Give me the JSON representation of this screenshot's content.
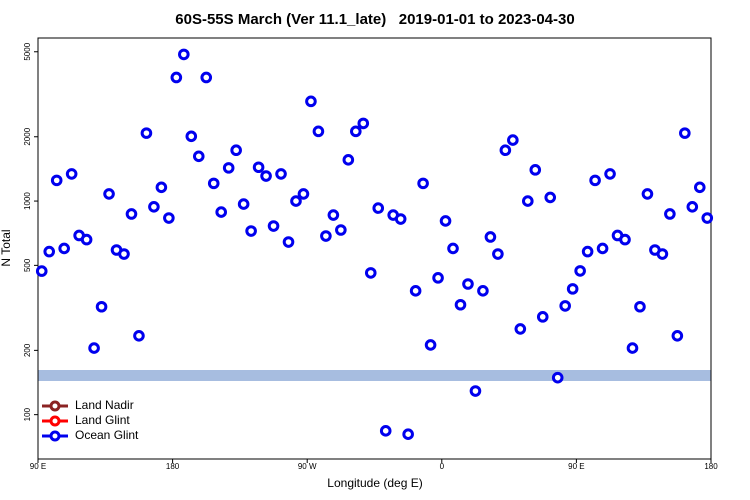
{
  "chart_data": {
    "type": "scatter",
    "title": "60S-55S March (Ver 11.1_late)   2019-01-01 to 2023-04-30",
    "x_label": "Longitude (deg E)",
    "y_label": "N Total",
    "xlim": [
      90,
      540
    ],
    "xticks": [
      {
        "value": 90,
        "label": "90 E"
      },
      180,
      {
        "value": 270,
        "label": "90 W"
      },
      {
        "value": 360,
        "label": "0"
      },
      {
        "value": 450,
        "label": "90 E"
      },
      {
        "value": 540,
        "label": "180"
      }
    ],
    "ylim": [
      62,
      5800
    ],
    "yticks": [
      100,
      200,
      500,
      1000,
      2000,
      5000
    ],
    "y_scale": "log",
    "grid": false,
    "legend": "lower left",
    "series": [
      {
        "name": "Land Nadir",
        "color": "#8b2323",
        "x": [],
        "values": []
      },
      {
        "name": "Land Glint",
        "color": "#ff0000",
        "x": [],
        "values": []
      },
      {
        "name": "Ocean Glint",
        "color": "#0000ee",
        "x": [
          92.5,
          97.5,
          102.5,
          107.5,
          112.5,
          117.5,
          122.5,
          127.5,
          132.5,
          137.5,
          142.5,
          147.5,
          152.5,
          157.5,
          162.5,
          167.5,
          172.5,
          177.5,
          182.5,
          187.5,
          192.5,
          197.5,
          202.5,
          207.5,
          212.5,
          217.5,
          222.5,
          227.5,
          232.5,
          237.5,
          242.5,
          247.5,
          252.5,
          257.5,
          262.5,
          267.5,
          272.5,
          277.5,
          282.5,
          287.5,
          292.5,
          297.5,
          302.5,
          307.5,
          312.5,
          317.5,
          322.5,
          327.5,
          332.5,
          337.5,
          342.5,
          347.5,
          352.5,
          357.5,
          362.5,
          367.5,
          372.5,
          377.5,
          382.5,
          387.5,
          392.5,
          397.5,
          402.5,
          407.5,
          412.5,
          417.5,
          422.5,
          427.5,
          432.5,
          437.5,
          442.5,
          447.5,
          452.5,
          457.5,
          462.5,
          467.5,
          472.5,
          477.5,
          482.5,
          487.5,
          492.5,
          497.5,
          502.5,
          507.5,
          512.5,
          517.5,
          522.5,
          527.5,
          532.5,
          537.5
        ],
        "values": [
          470,
          580,
          1250,
          600,
          1340,
          690,
          660,
          205,
          320,
          1080,
          590,
          565,
          870,
          234,
          2080,
          940,
          1160,
          833,
          3790,
          4860,
          2010,
          1620,
          3790,
          1210,
          888,
          1430,
          1730,
          968,
          724,
          1440,
          1310,
          764,
          1340,
          643,
          1000,
          1080,
          2930,
          2120,
          686,
          860,
          732,
          1560,
          2120,
          2310,
          461,
          927,
          84,
          860,
          824,
          81,
          380,
          1210,
          212,
          437,
          807,
          600,
          327,
          409,
          129,
          380,
          679,
          565,
          1730,
          1930,
          252,
          1000,
          1400,
          287,
          1040,
          149,
          323,
          388,
          471,
          580,
          1250,
          600,
          1340,
          690,
          660,
          205,
          320,
          1080,
          590,
          565,
          870,
          234,
          2080,
          940,
          1160,
          833
        ]
      }
    ]
  }
}
